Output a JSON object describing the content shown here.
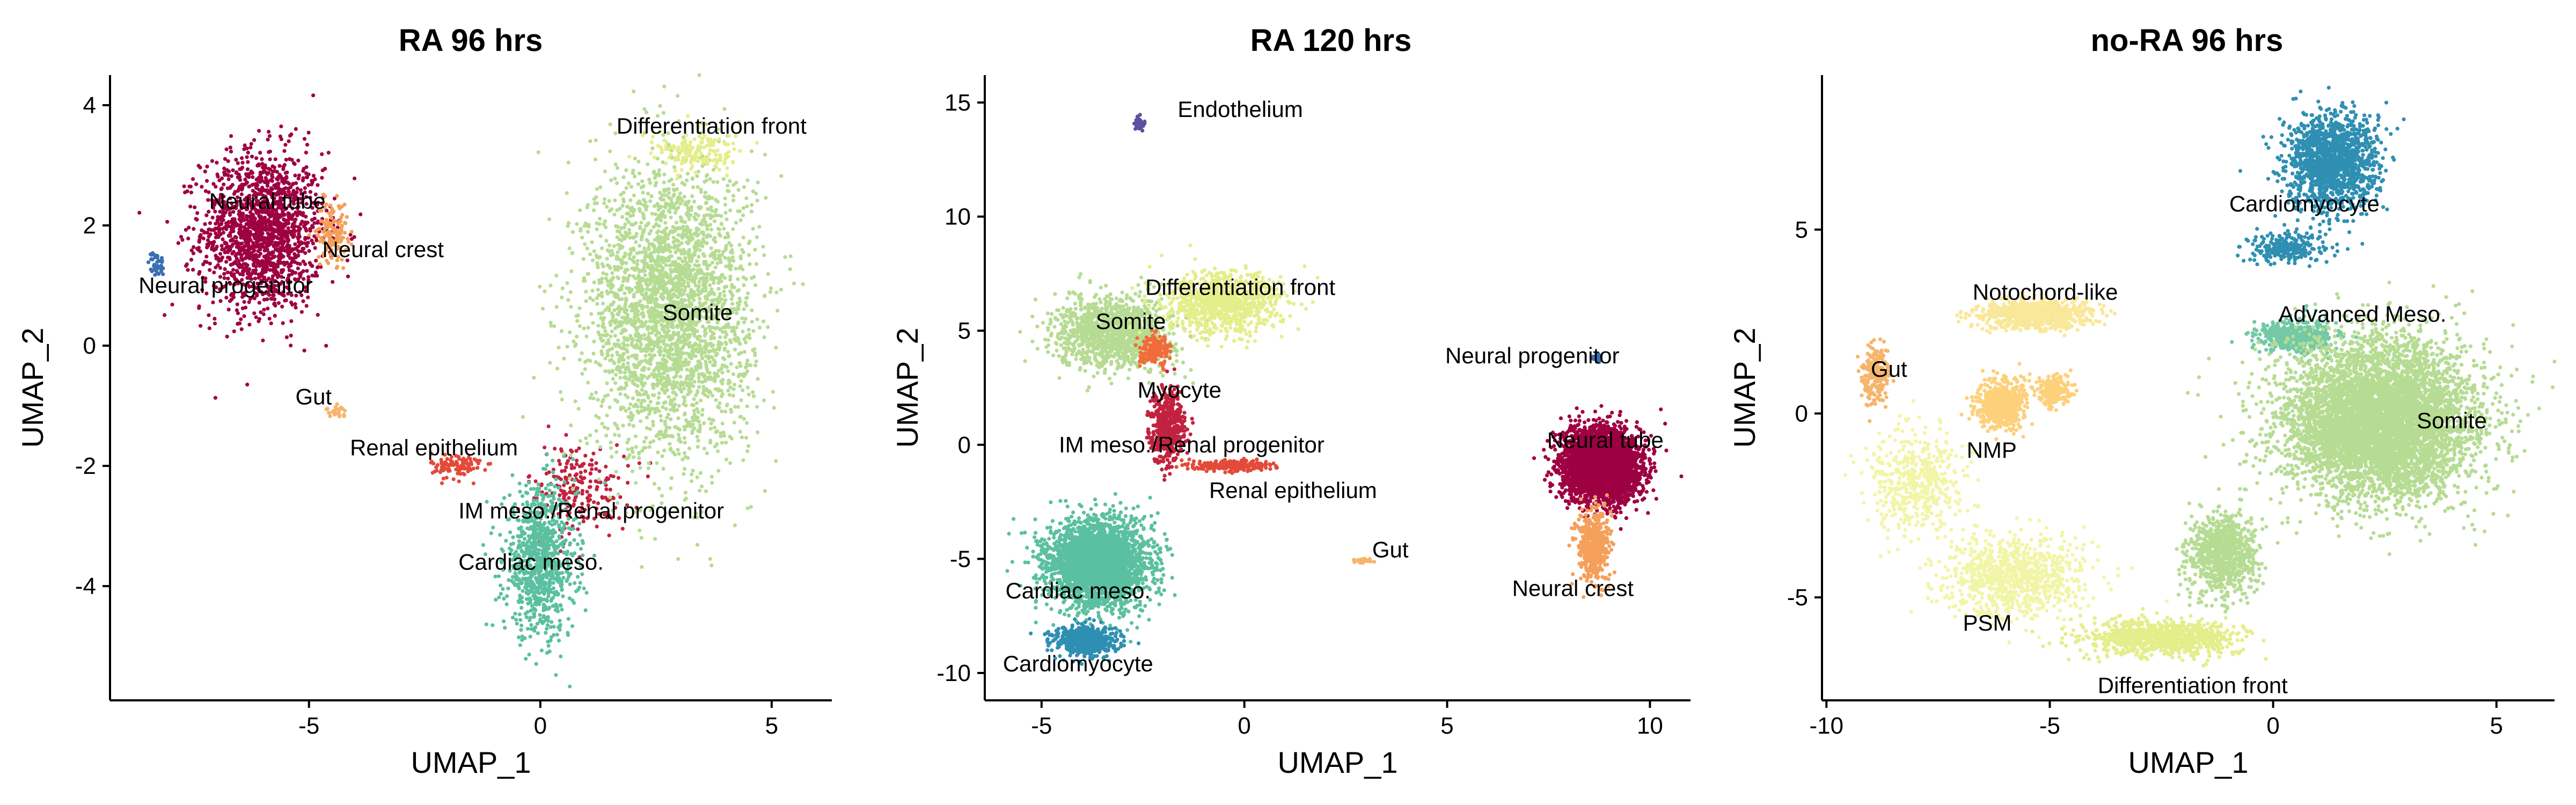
{
  "colors": {
    "Neural tube": "#9e0142",
    "Neural crest": "#f4a05a",
    "Neural progenitor": "#3a6fb0",
    "Gut": "#f6b56b",
    "Renal epithelium": "#e34a3a",
    "IM meso./Renal progenitor": "#c2223f",
    "Cardiac meso.": "#5bc0a0",
    "Cardiomyocyte": "#2f8fb2",
    "Somite": "#b6dc93",
    "Differentiation front": "#e4ee8a",
    "Myocyte": "#f26b3a",
    "Endothelium": "#5e4fa2",
    "Notochord-like": "#fae89a",
    "NMP": "#fdd07a",
    "PSM": "#f2f5a6",
    "Advanced Meso.": "#72c9a4"
  },
  "chart_data": [
    {
      "type": "scatter",
      "title": "RA 96 hrs",
      "xlabel": "UMAP_1",
      "ylabel": "UMAP_2",
      "xlim": [
        -9.3,
        6.3
      ],
      "ylim": [
        -5.9,
        4.5
      ],
      "xticks": [
        -5,
        0,
        5
      ],
      "yticks": [
        -4,
        -2,
        0,
        2,
        4
      ],
      "grid": false,
      "legend": "none",
      "clusters": [
        {
          "name": "Neural tube",
          "center": [
            -6.0,
            1.9
          ],
          "spread": [
            1.2,
            1.2
          ],
          "n": 1600
        },
        {
          "name": "Neural crest",
          "center": [
            -4.5,
            1.9
          ],
          "spread": [
            0.3,
            0.45
          ],
          "n": 140
        },
        {
          "name": "Neural progenitor",
          "center": [
            -8.3,
            1.35
          ],
          "spread": [
            0.15,
            0.2
          ],
          "n": 40
        },
        {
          "name": "Gut",
          "center": [
            -4.4,
            -1.1
          ],
          "spread": [
            0.2,
            0.08
          ],
          "n": 30
        },
        {
          "name": "Renal epithelium",
          "center": [
            -1.8,
            -2.0
          ],
          "spread": [
            0.5,
            0.2
          ],
          "n": 110
        },
        {
          "name": "IM meso./Renal progenitor",
          "center": [
            0.8,
            -2.4
          ],
          "spread": [
            1.0,
            0.7
          ],
          "n": 220
        },
        {
          "name": "Cardiac meso.",
          "center": [
            0.0,
            -3.6
          ],
          "spread": [
            0.7,
            1.1
          ],
          "n": 900
        },
        {
          "name": "Somite",
          "center": [
            2.8,
            0.6
          ],
          "spread": [
            1.6,
            2.2
          ],
          "n": 3000
        },
        {
          "name": "Differentiation front",
          "center": [
            3.4,
            3.2
          ],
          "spread": [
            0.9,
            0.3
          ],
          "n": 160
        }
      ],
      "labels": [
        {
          "text": "Neural tube",
          "pos": [
            -5.9,
            2.4
          ]
        },
        {
          "text": "Neural crest",
          "pos": [
            -3.4,
            1.6
          ]
        },
        {
          "text": "Neural progenitor",
          "pos": [
            -6.8,
            1.0
          ]
        },
        {
          "text": "Gut",
          "pos": [
            -4.9,
            -0.85
          ]
        },
        {
          "text": "Renal epithelium",
          "pos": [
            -2.3,
            -1.7
          ]
        },
        {
          "text": "IM meso./Renal progenitor",
          "pos": [
            1.1,
            -2.75
          ]
        },
        {
          "text": "Cardiac meso.",
          "pos": [
            -0.2,
            -3.6
          ]
        },
        {
          "text": "Somite",
          "pos": [
            3.4,
            0.55
          ]
        },
        {
          "text": "Differentiation front",
          "pos": [
            3.7,
            3.65
          ]
        }
      ]
    },
    {
      "type": "scatter",
      "title": "RA 120 hrs",
      "xlabel": "UMAP_1",
      "ylabel": "UMAP_2",
      "xlim": [
        -6.4,
        11.0
      ],
      "ylim": [
        -11.2,
        16.2
      ],
      "xticks": [
        -5,
        0,
        5,
        10
      ],
      "yticks": [
        -10,
        -5,
        0,
        5,
        10,
        15
      ],
      "grid": false,
      "legend": "none",
      "clusters": [
        {
          "name": "Endothelium",
          "center": [
            -2.6,
            14.1
          ],
          "spread": [
            0.08,
            0.25
          ],
          "n": 60
        },
        {
          "name": "Somite",
          "center": [
            -3.2,
            4.9
          ],
          "spread": [
            1.3,
            1.4
          ],
          "n": 1300
        },
        {
          "name": "Differentiation front",
          "center": [
            -0.5,
            6.2
          ],
          "spread": [
            1.3,
            1.2
          ],
          "n": 900
        },
        {
          "name": "Myocyte",
          "center": [
            -2.2,
            4.1
          ],
          "spread": [
            0.35,
            0.6
          ],
          "n": 160
        },
        {
          "name": "IM meso./Renal progenitor",
          "center": [
            -1.9,
            0.8
          ],
          "spread": [
            0.4,
            1.4
          ],
          "n": 500
        },
        {
          "name": "Renal epithelium",
          "center": [
            -0.3,
            -0.9
          ],
          "spread": [
            0.8,
            0.2
          ],
          "n": 300
        },
        {
          "name": "Cardiac meso.",
          "center": [
            -3.6,
            -5.2
          ],
          "spread": [
            1.1,
            1.7
          ],
          "n": 3000
        },
        {
          "name": "Cardiomyocyte",
          "center": [
            -3.9,
            -8.6
          ],
          "spread": [
            0.7,
            0.6
          ],
          "n": 600
        },
        {
          "name": "Neural tube",
          "center": [
            8.8,
            -0.9
          ],
          "spread": [
            0.85,
            1.4
          ],
          "n": 3600
        },
        {
          "name": "Neural crest",
          "center": [
            8.6,
            -4.4
          ],
          "spread": [
            0.35,
            1.4
          ],
          "n": 500
        },
        {
          "name": "Neural progenitor",
          "center": [
            8.7,
            3.8
          ],
          "spread": [
            0.1,
            0.15
          ],
          "n": 30
        },
        {
          "name": "Gut",
          "center": [
            2.9,
            -5.1
          ],
          "spread": [
            0.25,
            0.1
          ],
          "n": 30
        }
      ],
      "labels": [
        {
          "text": "Endothelium",
          "pos": [
            -0.1,
            14.7
          ]
        },
        {
          "text": "Differentiation front",
          "pos": [
            -0.1,
            6.9
          ]
        },
        {
          "text": "Somite",
          "pos": [
            -2.8,
            5.4
          ]
        },
        {
          "text": "Myocyte",
          "pos": [
            -1.6,
            2.4
          ]
        },
        {
          "text": "IM meso./Renal progenitor",
          "pos": [
            -1.3,
            0.0
          ]
        },
        {
          "text": "Renal epithelium",
          "pos": [
            1.2,
            -2.0
          ]
        },
        {
          "text": "Cardiac meso.",
          "pos": [
            -4.1,
            -6.4
          ]
        },
        {
          "text": "Cardiomyocyte",
          "pos": [
            -4.1,
            -9.6
          ]
        },
        {
          "text": "Neural progenitor",
          "pos": [
            7.1,
            3.9
          ]
        },
        {
          "text": "Neural tube",
          "pos": [
            8.9,
            0.2
          ]
        },
        {
          "text": "Gut",
          "pos": [
            3.6,
            -4.6
          ]
        },
        {
          "text": "Neural crest",
          "pos": [
            8.1,
            -6.3
          ]
        }
      ]
    },
    {
      "type": "scatter",
      "title": "no-RA 96 hrs",
      "xlabel": "UMAP_1",
      "ylabel": "UMAP_2",
      "xlim": [
        -10.1,
        6.3
      ],
      "ylim": [
        -7.8,
        9.2
      ],
      "xticks": [
        -10,
        -5,
        0,
        5
      ],
      "yticks": [
        -5,
        0,
        5
      ],
      "grid": false,
      "legend": "none",
      "clusters": [
        {
          "name": "Cardiomyocyte",
          "center": [
            1.3,
            6.8
          ],
          "spread": [
            0.9,
            1.2
          ],
          "n": 1500
        },
        {
          "name": "Cardiomyocyte",
          "center": [
            0.3,
            4.5
          ],
          "spread": [
            0.8,
            0.4
          ],
          "n": 250
        },
        {
          "name": "Advanced Meso.",
          "center": [
            0.5,
            2.1
          ],
          "spread": [
            0.8,
            0.4
          ],
          "n": 500
        },
        {
          "name": "Somite",
          "center": [
            2.4,
            -0.2
          ],
          "spread": [
            1.9,
            1.9
          ],
          "n": 6000
        },
        {
          "name": "Somite",
          "center": [
            -1.1,
            -3.8
          ],
          "spread": [
            0.7,
            1.0
          ],
          "n": 900
        },
        {
          "name": "Differentiation front",
          "center": [
            -2.5,
            -6.1
          ],
          "spread": [
            1.5,
            0.45
          ],
          "n": 900
        },
        {
          "name": "PSM",
          "center": [
            -5.8,
            -4.4
          ],
          "spread": [
            1.5,
            1.0
          ],
          "n": 900
        },
        {
          "name": "NMP",
          "center": [
            -6.1,
            0.2
          ],
          "spread": [
            0.5,
            0.6
          ],
          "n": 600
        },
        {
          "name": "NMP",
          "center": [
            -4.9,
            0.6
          ],
          "spread": [
            0.35,
            0.4
          ],
          "n": 180
        },
        {
          "name": "Notochord-like",
          "center": [
            -5.3,
            2.7
          ],
          "spread": [
            1.1,
            0.35
          ],
          "n": 900
        },
        {
          "name": "Gut",
          "center": [
            -8.9,
            1.1
          ],
          "spread": [
            0.3,
            0.7
          ],
          "n": 220
        },
        {
          "name": "PSM",
          "center": [
            -8.0,
            -1.8
          ],
          "spread": [
            0.9,
            1.2
          ],
          "n": 500
        }
      ],
      "labels": [
        {
          "text": "Cardiomyocyte",
          "pos": [
            0.7,
            5.7
          ]
        },
        {
          "text": "Notochord-like",
          "pos": [
            -5.1,
            3.3
          ]
        },
        {
          "text": "Advanced Meso.",
          "pos": [
            2.0,
            2.7
          ]
        },
        {
          "text": "Gut",
          "pos": [
            -8.6,
            1.2
          ]
        },
        {
          "text": "Somite",
          "pos": [
            4.0,
            -0.2
          ]
        },
        {
          "text": "NMP",
          "pos": [
            -6.3,
            -1.0
          ]
        },
        {
          "text": "PSM",
          "pos": [
            -6.4,
            -5.7
          ]
        },
        {
          "text": "Differentiation front",
          "pos": [
            -1.8,
            -7.4
          ]
        }
      ]
    }
  ]
}
